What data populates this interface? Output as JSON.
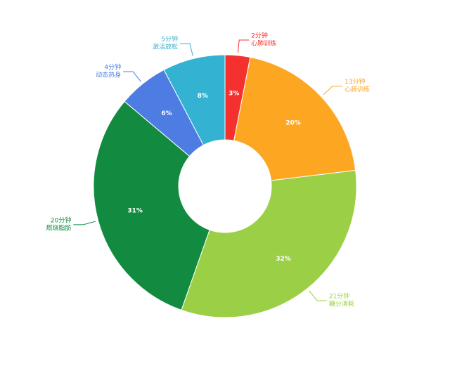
{
  "chart_data": {
    "type": "pie",
    "variant": "donut",
    "title": "",
    "legend": "none",
    "unit": "分钟",
    "slices": [
      {
        "category": "心肺训练",
        "minutes": 2,
        "minutes_label": "2分钟",
        "percent": 3,
        "percent_label": "3%",
        "color": "#f5312f"
      },
      {
        "category": "心肺训练",
        "minutes": 13,
        "minutes_label": "13分钟",
        "percent": 20,
        "percent_label": "20%",
        "color": "#fda622"
      },
      {
        "category": "糖分消耗",
        "minutes": 21,
        "minutes_label": "21分钟",
        "percent": 32,
        "percent_label": "32%",
        "color": "#9bd046"
      },
      {
        "category": "燃烧脂肪",
        "minutes": 20,
        "minutes_label": "20分钟",
        "percent": 31,
        "percent_label": "31%",
        "color": "#128b41"
      },
      {
        "category": "动态热身",
        "minutes": 4,
        "minutes_label": "4分钟",
        "percent": 6,
        "percent_label": "6%",
        "color": "#4d7ce3"
      },
      {
        "category": "激活放松",
        "minutes": 5,
        "minutes_label": "5分钟",
        "percent": 8,
        "percent_label": "8%",
        "color": "#33b2d1"
      }
    ]
  }
}
